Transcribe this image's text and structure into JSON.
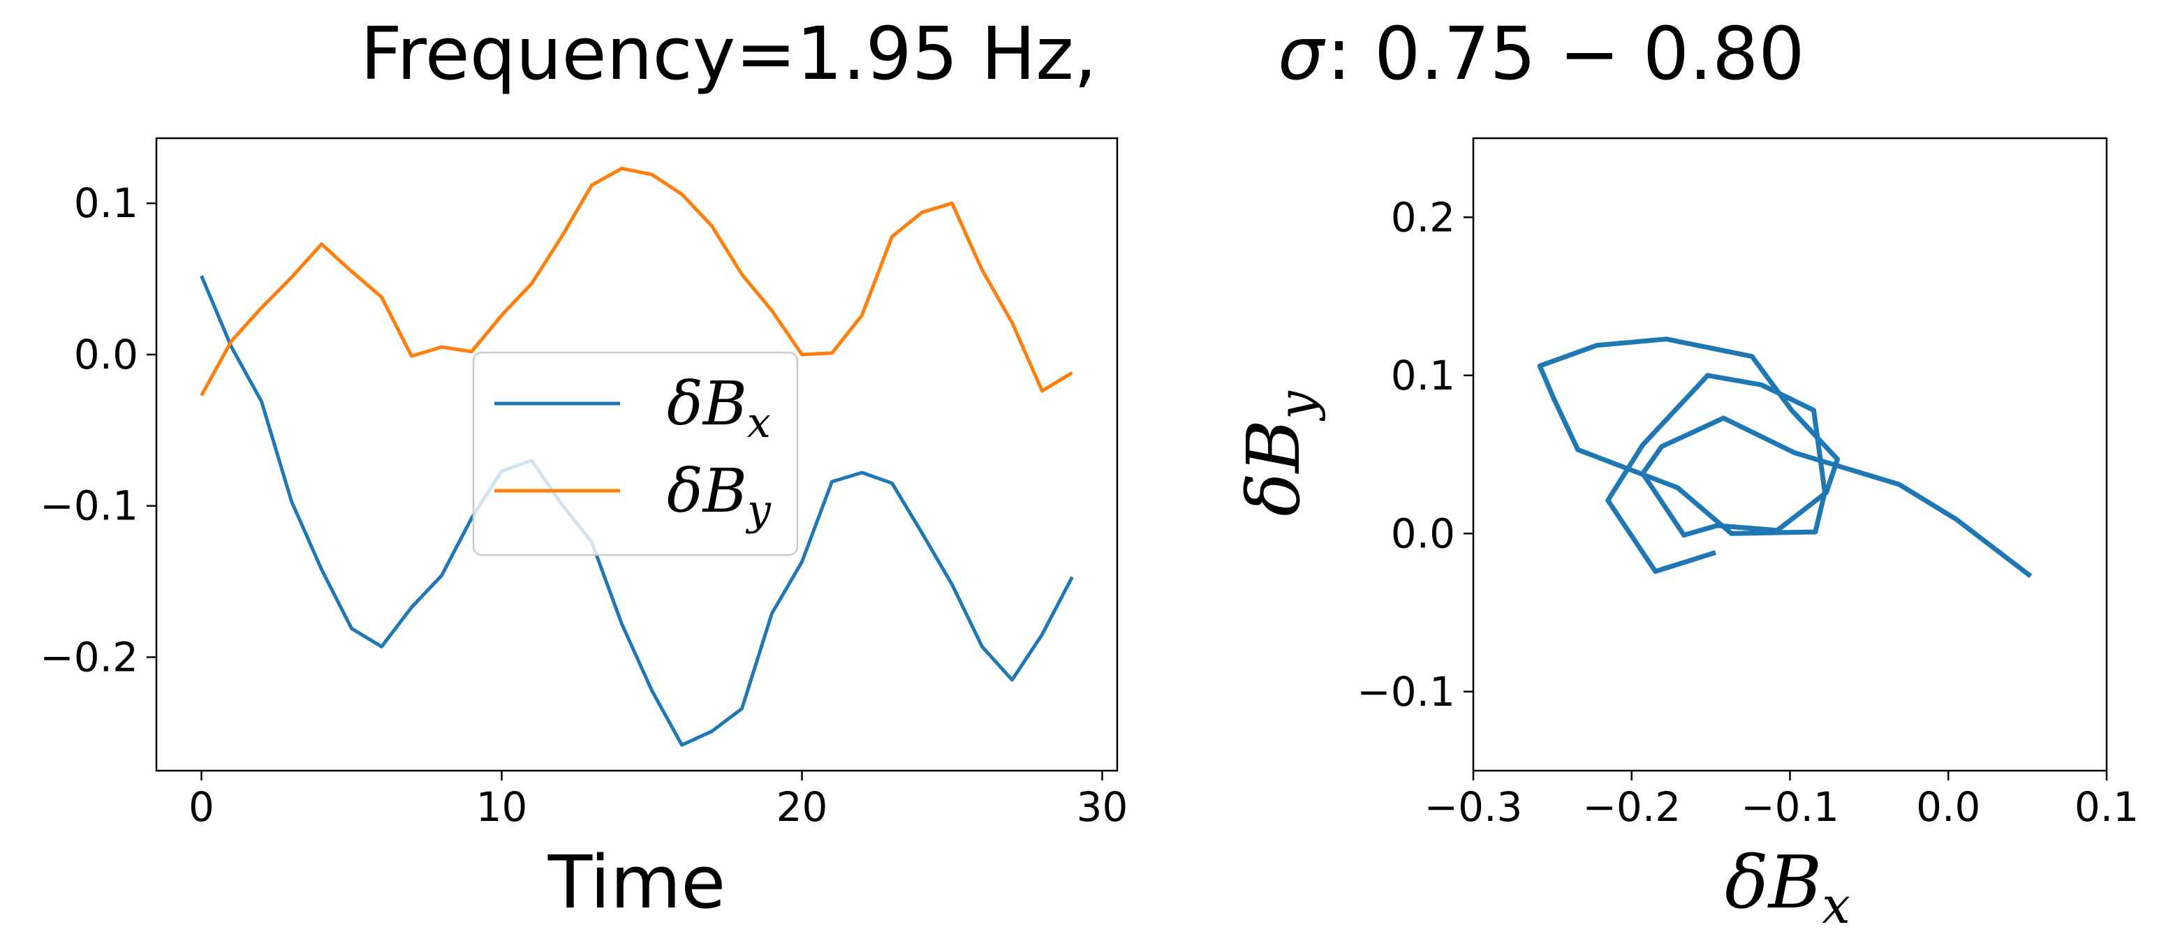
{
  "chart_data": [
    {
      "type": "line",
      "title": "",
      "xlabel": "Time",
      "ylabel": "",
      "xlim": [
        -1.5,
        30.5
      ],
      "ylim": [
        -0.275,
        0.143
      ],
      "xticks": [
        0,
        10,
        20,
        30
      ],
      "xtick_labels": [
        "0",
        "10",
        "20",
        "30"
      ],
      "yticks": [
        -0.2,
        -0.1,
        0.0,
        0.1
      ],
      "ytick_labels": [
        "−0.2",
        "−0.1",
        "0.0",
        "0.1"
      ],
      "legend": "center",
      "x": [
        0,
        1,
        2,
        3,
        4,
        5,
        6,
        7,
        8,
        9,
        10,
        11,
        12,
        13,
        14,
        15,
        16,
        17,
        18,
        19,
        20,
        21,
        22,
        23,
        24,
        25,
        26,
        27,
        28,
        29
      ],
      "series": [
        {
          "name": "δB",
          "subscript": "x",
          "color": "#1f77b4",
          "values": [
            0.052,
            0.005,
            -0.031,
            -0.097,
            -0.142,
            -0.181,
            -0.193,
            -0.167,
            -0.146,
            -0.108,
            -0.077,
            -0.07,
            -0.099,
            -0.124,
            -0.178,
            -0.222,
            -0.258,
            -0.249,
            -0.234,
            -0.171,
            -0.137,
            -0.084,
            -0.078,
            -0.085,
            -0.118,
            -0.152,
            -0.193,
            -0.215,
            -0.185,
            -0.147
          ]
        },
        {
          "name": "δB",
          "subscript": "y",
          "color": "#ff7f0e",
          "values": [
            -0.027,
            0.009,
            0.031,
            0.051,
            0.073,
            0.055,
            0.038,
            -0.001,
            0.005,
            0.002,
            0.026,
            0.047,
            0.078,
            0.112,
            0.123,
            0.119,
            0.106,
            0.085,
            0.053,
            0.029,
            0.0,
            0.001,
            0.026,
            0.078,
            0.094,
            0.1,
            0.056,
            0.021,
            -0.024,
            -0.012
          ]
        }
      ]
    },
    {
      "type": "line",
      "title": "",
      "xlabel_main": "δB",
      "xlabel_sub": "x",
      "ylabel_main": "δB",
      "ylabel_sub": "y",
      "xlim": [
        -0.3,
        0.1
      ],
      "ylim": [
        -0.15,
        0.25
      ],
      "xticks": [
        -0.3,
        -0.2,
        -0.1,
        0.0,
        0.1
      ],
      "xtick_labels": [
        "−0.3",
        "−0.2",
        "−0.1",
        "0.0",
        "0.1"
      ],
      "yticks": [
        -0.1,
        0.0,
        0.1,
        0.2
      ],
      "ytick_labels": [
        "−0.1",
        "0.0",
        "0.1",
        "0.2"
      ],
      "series": [
        {
          "name": "δBy vs δBx",
          "color": "#1f77b4",
          "x_source": "series 0 of chart 0",
          "y_source": "series 1 of chart 0"
        }
      ]
    }
  ],
  "suptitle": {
    "left": "Frequency=1.95 Hz,",
    "sigma": "σ",
    "right": ": 0.75 − 0.80"
  }
}
